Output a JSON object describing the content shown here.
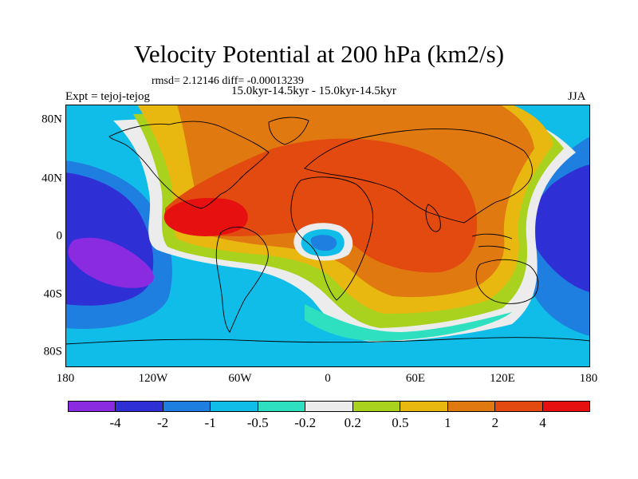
{
  "title": "Velocity Potential at 200 hPa (km2/s)",
  "stats": "rmsd= 2.12146 diff= -0.00013239",
  "experiment": "Expt = tejoj-tejog",
  "period": "15.0kyr-14.5kyr - 15.0kyr-14.5kyr",
  "season": "JJA",
  "lat_labels": [
    "80N",
    "40N",
    "0",
    "40S",
    "80S"
  ],
  "lon_labels": [
    "180",
    "120W",
    "60W",
    "0",
    "60E",
    "120E",
    "180"
  ],
  "colorbar": {
    "labels": [
      "-4",
      "-2",
      "-1",
      "-0.5",
      "-0.2",
      "0.2",
      "0.5",
      "1",
      "2",
      "4"
    ],
    "colors": [
      "#8a2be2",
      "#2f2fd6",
      "#1e7fe0",
      "#10bde8",
      "#2ee0c0",
      "#ececec",
      "#a8d21e",
      "#e8b810",
      "#e07a10",
      "#e24a10",
      "#e61010"
    ]
  }
}
